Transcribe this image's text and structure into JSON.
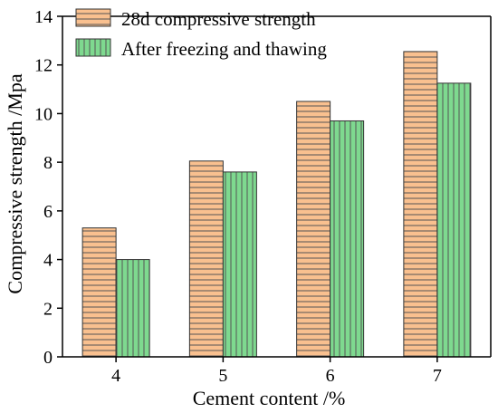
{
  "chart_data": {
    "type": "bar",
    "categories": [
      "4",
      "5",
      "6",
      "7"
    ],
    "series": [
      {
        "name": "28d compressive strength",
        "values": [
          5.3,
          8.05,
          10.5,
          12.55
        ],
        "color": "#F9C08F",
        "pattern": "horizontal-lines"
      },
      {
        "name": "After freezing and thawing",
        "values": [
          4.0,
          7.6,
          9.7,
          11.25
        ],
        "color": "#7ED98F",
        "pattern": "vertical-lines"
      }
    ],
    "xlabel": "Cement content /%",
    "ylabel": "Compressive strength /Mpa",
    "ylim": [
      0,
      14
    ],
    "yticks": [
      "0",
      "2",
      "4",
      "6",
      "8",
      "10",
      "12",
      "14"
    ],
    "grid": false,
    "legend_position": "top-left"
  }
}
